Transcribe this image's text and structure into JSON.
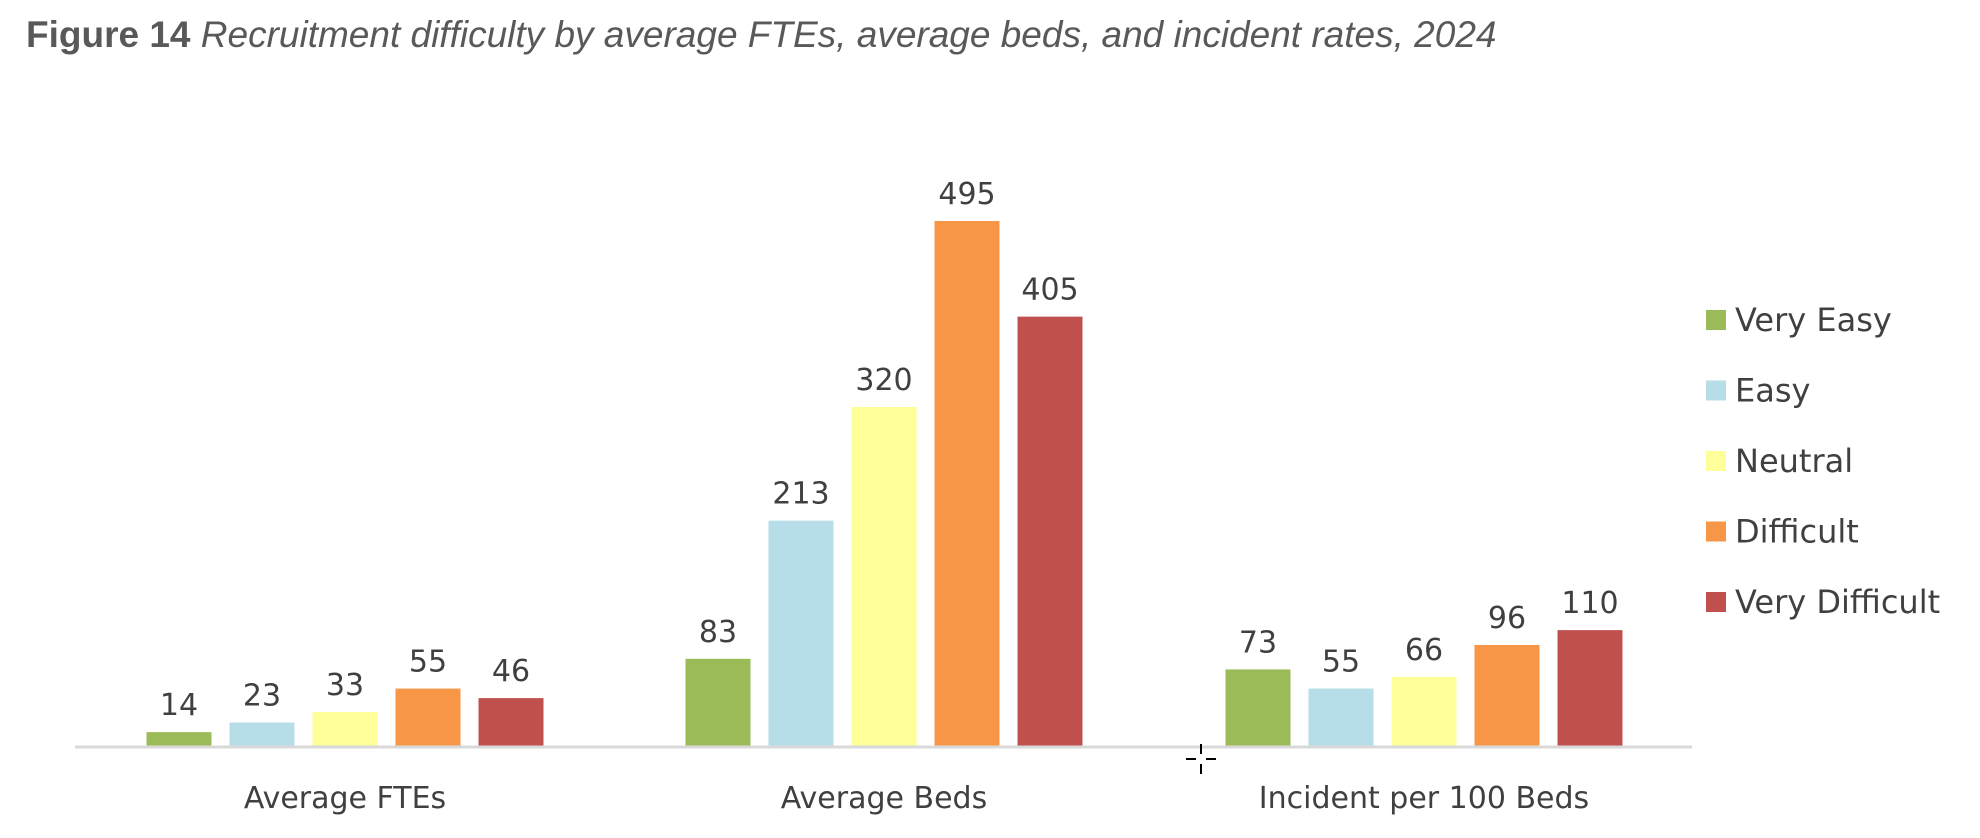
{
  "title": {
    "number": "Figure 14",
    "text": "Recruitment difficulty by average FTEs, average beds, and incident rates, 2024"
  },
  "chart_data": {
    "type": "bar",
    "title": "Figure 14 Recruitment difficulty by average FTEs, average beds, and incident rates, 2024",
    "categories": [
      "Average FTEs",
      "Average Beds",
      "Incident per 100 Beds"
    ],
    "series": [
      {
        "name": "Very Easy",
        "color": "#9BBB59",
        "values": [
          14,
          83,
          73
        ]
      },
      {
        "name": "Easy",
        "color": "#B7DDE8",
        "values": [
          23,
          213,
          55
        ]
      },
      {
        "name": "Neutral",
        "color": "#FFFF99",
        "values": [
          33,
          320,
          66
        ]
      },
      {
        "name": "Difficult",
        "color": "#F79646",
        "values": [
          55,
          495,
          96
        ]
      },
      {
        "name": "Very Difficult",
        "color": "#C0504D",
        "values": [
          46,
          405,
          110
        ]
      }
    ],
    "ylim": [
      0,
      495
    ],
    "grid": false,
    "y_axis_visible": false,
    "data_labels": true,
    "legend_position": "right",
    "axis_line_color": "#D9D9D9"
  }
}
